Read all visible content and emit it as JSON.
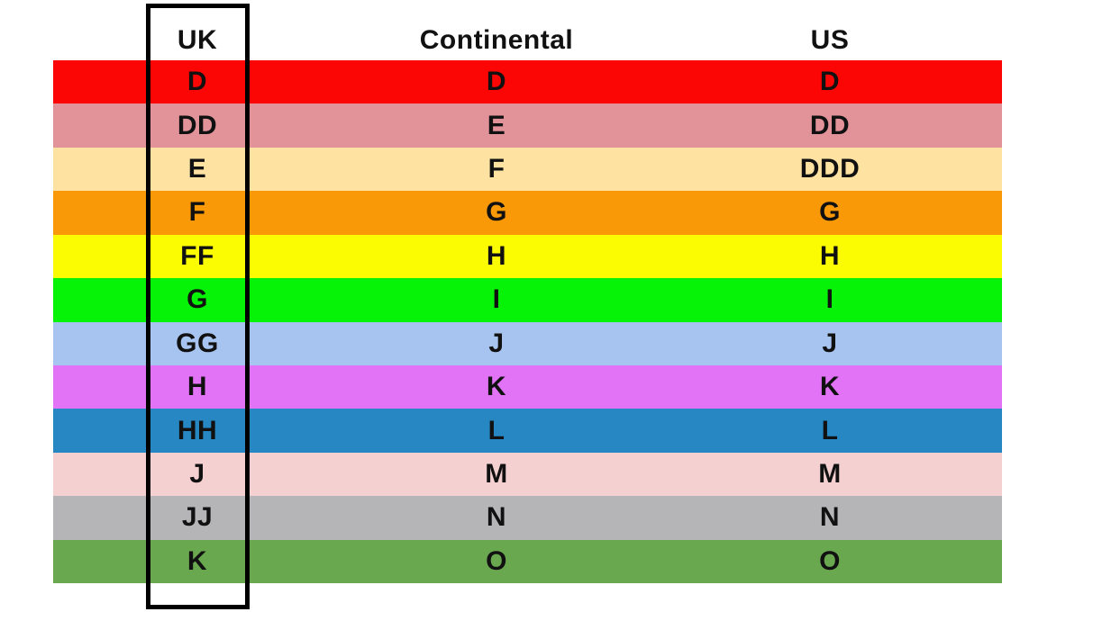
{
  "chart_data": {
    "type": "table",
    "title": "",
    "columns": [
      "UK",
      "Continental",
      "US"
    ],
    "rows": [
      [
        "D",
        "D",
        "D"
      ],
      [
        "DD",
        "E",
        "DD"
      ],
      [
        "E",
        "F",
        "DDD"
      ],
      [
        "F",
        "G",
        "G"
      ],
      [
        "FF",
        "H",
        "H"
      ],
      [
        "G",
        "I",
        "I"
      ],
      [
        "GG",
        "J",
        "J"
      ],
      [
        "H",
        "K",
        "K"
      ],
      [
        "HH",
        "L",
        "L"
      ],
      [
        "J",
        "M",
        "M"
      ],
      [
        "JJ",
        "N",
        "N"
      ],
      [
        "K",
        "O",
        "O"
      ]
    ],
    "row_colors": [
      "#FB0505",
      "#E29399",
      "#FDE2A2",
      "#FA9908",
      "#FBFB02",
      "#06F206",
      "#A7C3F0",
      "#E273F7",
      "#2787C3",
      "#F4D1D0",
      "#B5B4B6",
      "#6AA850"
    ],
    "highlighted_column": "UK",
    "text_color": "#111111",
    "highlight_border_color": "#000000",
    "layout": {
      "grid": "off",
      "legend": "none"
    }
  }
}
